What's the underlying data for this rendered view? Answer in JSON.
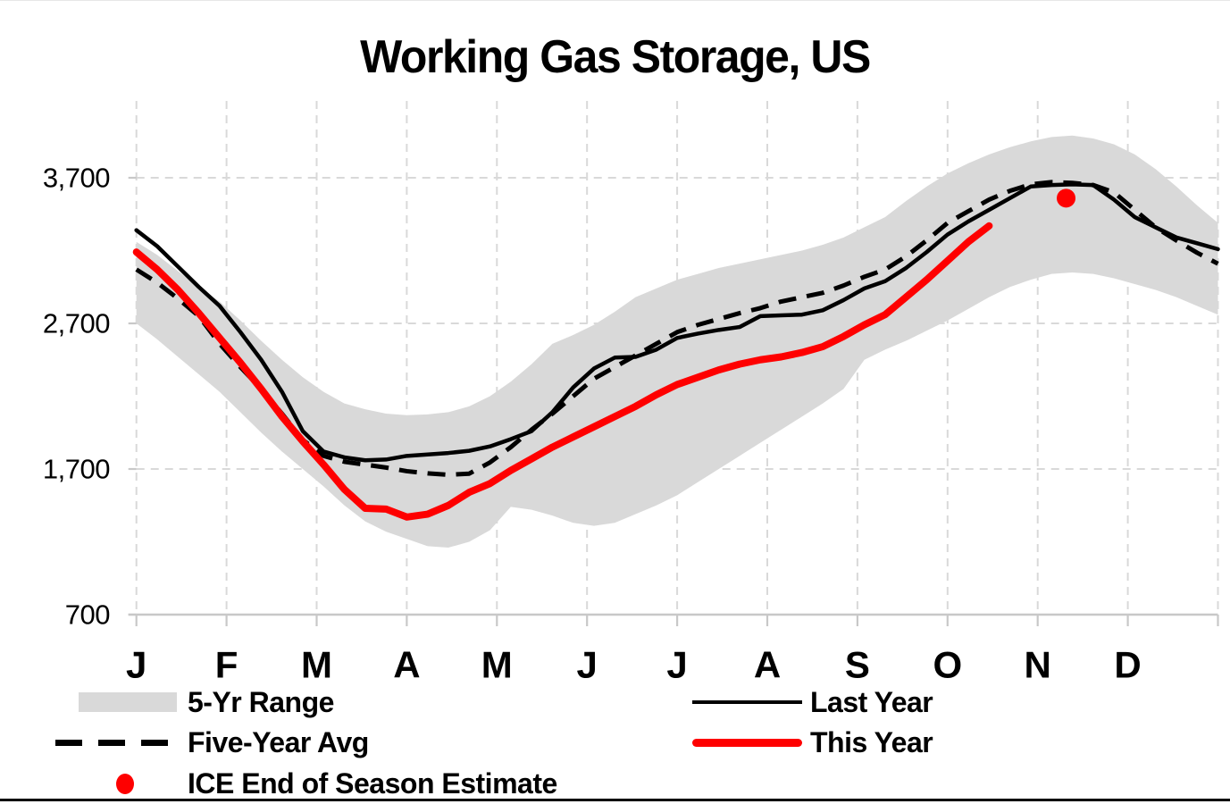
{
  "title": "Working Gas Storage, US",
  "legend": {
    "items": [
      {
        "label": "5-Yr Range",
        "swatch": "gray-band"
      },
      {
        "label": "Five-Year Avg",
        "swatch": "black-dashed-line"
      },
      {
        "label": "ICE End of Season Estimate",
        "swatch": "red-dot"
      },
      {
        "label": "Last Year",
        "swatch": "black-solid-line"
      },
      {
        "label": "This Year",
        "swatch": "red-solid-line"
      }
    ]
  },
  "chart_data": {
    "type": "line",
    "title": "Working Gas Storage, US",
    "xlabel": "",
    "ylabel": "",
    "x_axis": {
      "month_labels": [
        "J",
        "F",
        "M",
        "A",
        "M",
        "J",
        "J",
        "A",
        "S",
        "O",
        "N",
        "D"
      ],
      "weeks": 52
    },
    "y_axis": {
      "min": 700,
      "max": 4215,
      "major_unit": 1000,
      "ticks": [
        {
          "value": 3700,
          "label": "3,700"
        },
        {
          "value": 2700,
          "label": "2,700"
        },
        {
          "value": 1700,
          "label": "1,700"
        },
        {
          "value": 700,
          "label": "700"
        }
      ]
    },
    "grid": "dashed-light-gray",
    "legend_position": "bottom",
    "colors": {
      "band": "#D9D9D9",
      "grid": "#D9D9D9",
      "axis": "#C8C8C8",
      "red": "#FE0000",
      "black": "#000000"
    },
    "band": {
      "name": "5-Yr Range",
      "low": [
        2700,
        2590,
        2470,
        2350,
        2230,
        2090,
        1950,
        1820,
        1700,
        1580,
        1450,
        1340,
        1270,
        1220,
        1170,
        1160,
        1200,
        1280,
        1440,
        1420,
        1380,
        1330,
        1310,
        1330,
        1390,
        1450,
        1520,
        1610,
        1700,
        1790,
        1880,
        1970,
        2060,
        2150,
        2250,
        2450,
        2520,
        2580,
        2650,
        2720,
        2800,
        2880,
        2950,
        3000,
        3040,
        3050,
        3040,
        3010,
        2970,
        2930,
        2880,
        2820,
        2760
      ],
      "high": [
        3260,
        3170,
        3060,
        2950,
        2850,
        2720,
        2580,
        2450,
        2330,
        2230,
        2150,
        2110,
        2080,
        2070,
        2075,
        2090,
        2130,
        2200,
        2300,
        2420,
        2560,
        2620,
        2690,
        2780,
        2880,
        2940,
        3000,
        3040,
        3080,
        3110,
        3140,
        3170,
        3200,
        3240,
        3290,
        3360,
        3430,
        3540,
        3640,
        3730,
        3800,
        3860,
        3910,
        3950,
        3980,
        3990,
        3970,
        3930,
        3860,
        3760,
        3640,
        3510,
        3390
      ]
    },
    "series": [
      {
        "name": "Last Year",
        "style": "solid",
        "color": "#000000",
        "width": 4.5,
        "values": [
          3340,
          3230,
          3090,
          2950,
          2820,
          2640,
          2450,
          2230,
          1960,
          1820,
          1780,
          1760,
          1765,
          1790,
          1800,
          1810,
          1825,
          1855,
          1905,
          1960,
          2090,
          2260,
          2390,
          2465,
          2470,
          2520,
          2600,
          2630,
          2655,
          2675,
          2750,
          2755,
          2760,
          2790,
          2860,
          2940,
          2990,
          3080,
          3190,
          3310,
          3400,
          3480,
          3560,
          3640,
          3650,
          3655,
          3650,
          3550,
          3430,
          3360,
          3290,
          3250,
          3210
        ]
      },
      {
        "name": "Five-Year Avg",
        "style": "dashed",
        "color": "#000000",
        "width": 5,
        "values": [
          3070,
          2980,
          2870,
          2750,
          2560,
          2400,
          2250,
          2080,
          1900,
          1790,
          1750,
          1730,
          1710,
          1685,
          1670,
          1660,
          1668,
          1745,
          1850,
          1970,
          2080,
          2200,
          2320,
          2400,
          2480,
          2560,
          2640,
          2690,
          2730,
          2770,
          2805,
          2850,
          2880,
          2910,
          2960,
          3020,
          3070,
          3160,
          3270,
          3390,
          3470,
          3550,
          3610,
          3655,
          3670,
          3665,
          3650,
          3600,
          3480,
          3360,
          3270,
          3185,
          3110
        ]
      },
      {
        "name": "This Year",
        "style": "solid",
        "color": "#FE0000",
        "width": 8,
        "values": [
          3190,
          3070,
          2930,
          2770,
          2600,
          2430,
          2250,
          2060,
          1890,
          1730,
          1560,
          1430,
          1425,
          1370,
          1390,
          1450,
          1540,
          1600,
          1690,
          1770,
          1850,
          1920,
          1990,
          2060,
          2130,
          2210,
          2280,
          2330,
          2380,
          2420,
          2450,
          2470,
          2500,
          2540,
          2610,
          2690,
          2760,
          2880,
          3000,
          3130,
          3260,
          3370
        ]
      }
    ],
    "point_marker": {
      "name": "ICE End of Season Estimate",
      "color": "#FE0000",
      "week": 44.7,
      "value": 3560
    }
  }
}
